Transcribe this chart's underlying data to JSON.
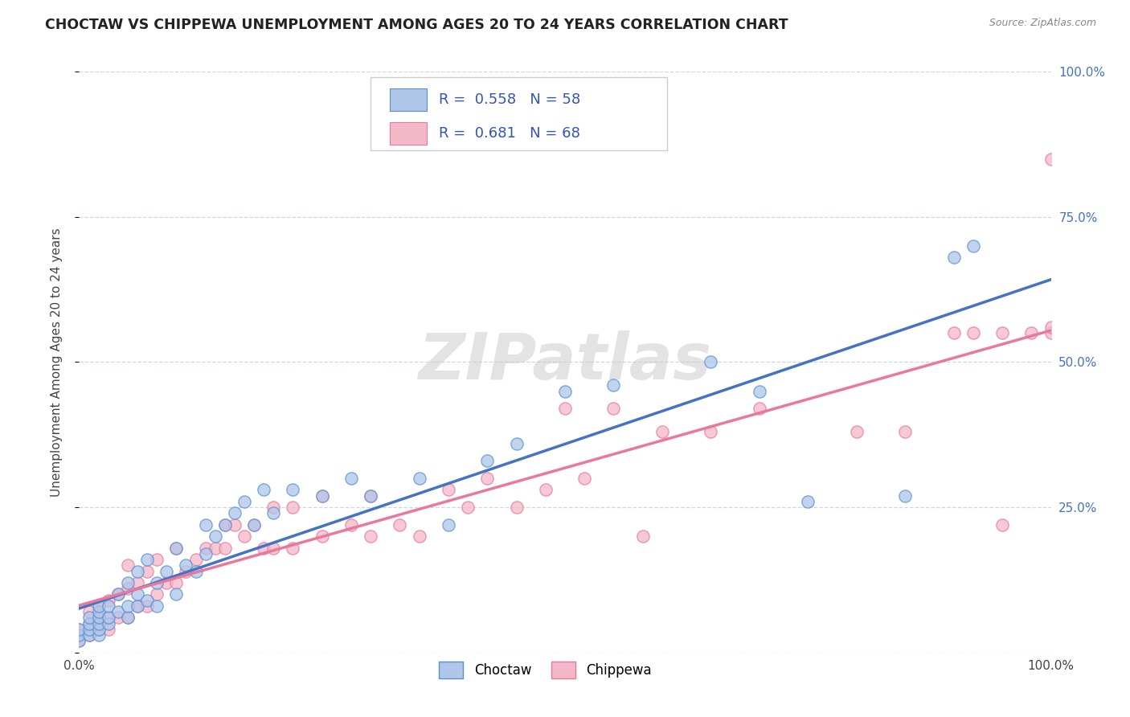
{
  "title": "CHOCTAW VS CHIPPEWA UNEMPLOYMENT AMONG AGES 20 TO 24 YEARS CORRELATION CHART",
  "source": "Source: ZipAtlas.com",
  "ylabel": "Unemployment Among Ages 20 to 24 years",
  "xlim": [
    0,
    1.0
  ],
  "ylim": [
    0,
    1.0
  ],
  "ytick_positions": [
    0.0,
    0.25,
    0.5,
    0.75,
    1.0
  ],
  "choctaw_R": 0.558,
  "choctaw_N": 58,
  "chippewa_R": 0.681,
  "chippewa_N": 68,
  "choctaw_color": "#aec6e8",
  "chippewa_color": "#f4b8c8",
  "choctaw_edge_color": "#5b8fd4",
  "chippewa_edge_color": "#e8799a",
  "choctaw_line_color": "#4472c4",
  "chippewa_line_color": "#e8799a",
  "background_color": "#ffffff",
  "grid_color": "#c8d8ec",
  "watermark": "ZIPatlas",
  "legend_text_color": "#3355bb",
  "right_tick_color": "#4472c4",
  "title_color": "#222222",
  "source_color": "#888888",
  "axis_label_color": "#444444",
  "choctaw_line_end_y": 0.65,
  "chippewa_line_end_y": 0.55,
  "choctaw_x": [
    0.0,
    0.0,
    0.0,
    0.01,
    0.01,
    0.01,
    0.01,
    0.02,
    0.02,
    0.02,
    0.02,
    0.02,
    0.02,
    0.03,
    0.03,
    0.03,
    0.04,
    0.04,
    0.05,
    0.05,
    0.05,
    0.06,
    0.06,
    0.06,
    0.07,
    0.07,
    0.08,
    0.08,
    0.09,
    0.1,
    0.1,
    0.11,
    0.12,
    0.13,
    0.13,
    0.14,
    0.15,
    0.16,
    0.17,
    0.18,
    0.19,
    0.2,
    0.22,
    0.25,
    0.28,
    0.3,
    0.35,
    0.38,
    0.42,
    0.45,
    0.5,
    0.55,
    0.65,
    0.7,
    0.75,
    0.85,
    0.9,
    0.92
  ],
  "choctaw_y": [
    0.02,
    0.03,
    0.04,
    0.03,
    0.04,
    0.05,
    0.06,
    0.03,
    0.04,
    0.05,
    0.06,
    0.07,
    0.08,
    0.05,
    0.06,
    0.08,
    0.07,
    0.1,
    0.06,
    0.08,
    0.12,
    0.08,
    0.1,
    0.14,
    0.09,
    0.16,
    0.08,
    0.12,
    0.14,
    0.1,
    0.18,
    0.15,
    0.14,
    0.17,
    0.22,
    0.2,
    0.22,
    0.24,
    0.26,
    0.22,
    0.28,
    0.24,
    0.28,
    0.27,
    0.3,
    0.27,
    0.3,
    0.22,
    0.33,
    0.36,
    0.45,
    0.46,
    0.5,
    0.45,
    0.26,
    0.27,
    0.68,
    0.7
  ],
  "chippewa_x": [
    0.0,
    0.0,
    0.01,
    0.01,
    0.01,
    0.02,
    0.02,
    0.02,
    0.03,
    0.03,
    0.03,
    0.04,
    0.04,
    0.05,
    0.05,
    0.05,
    0.06,
    0.06,
    0.07,
    0.07,
    0.08,
    0.08,
    0.09,
    0.1,
    0.1,
    0.11,
    0.12,
    0.13,
    0.14,
    0.15,
    0.15,
    0.16,
    0.17,
    0.18,
    0.19,
    0.2,
    0.2,
    0.22,
    0.22,
    0.25,
    0.25,
    0.28,
    0.3,
    0.3,
    0.33,
    0.35,
    0.38,
    0.4,
    0.42,
    0.45,
    0.48,
    0.5,
    0.52,
    0.55,
    0.58,
    0.6,
    0.65,
    0.7,
    0.8,
    0.85,
    0.9,
    0.92,
    0.95,
    0.95,
    0.98,
    1.0,
    1.0,
    1.0
  ],
  "chippewa_y": [
    0.02,
    0.04,
    0.03,
    0.05,
    0.07,
    0.04,
    0.06,
    0.08,
    0.04,
    0.06,
    0.09,
    0.06,
    0.1,
    0.06,
    0.11,
    0.15,
    0.08,
    0.12,
    0.08,
    0.14,
    0.1,
    0.16,
    0.12,
    0.12,
    0.18,
    0.14,
    0.16,
    0.18,
    0.18,
    0.18,
    0.22,
    0.22,
    0.2,
    0.22,
    0.18,
    0.18,
    0.25,
    0.18,
    0.25,
    0.2,
    0.27,
    0.22,
    0.2,
    0.27,
    0.22,
    0.2,
    0.28,
    0.25,
    0.3,
    0.25,
    0.28,
    0.42,
    0.3,
    0.42,
    0.2,
    0.38,
    0.38,
    0.42,
    0.38,
    0.38,
    0.55,
    0.55,
    0.22,
    0.55,
    0.55,
    0.55,
    0.56,
    0.85
  ]
}
